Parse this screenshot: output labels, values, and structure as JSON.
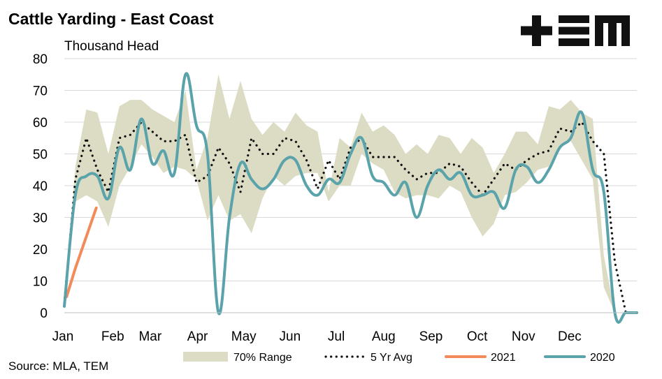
{
  "header": {
    "title": "Cattle Yarding - East Coast",
    "subtitle": "Thousand Head",
    "source": "Source: MLA, TEM",
    "logo_text": "+TEM"
  },
  "colors": {
    "range": "#dcdcc4",
    "avg": "#111111",
    "y2021": "#f28a5a",
    "y2020": "#5aa3ab",
    "grid": "#d9d9d9",
    "logo": "#111111"
  },
  "chart_data": {
    "type": "line",
    "title": "Cattle Yarding - East Coast",
    "ylabel": "Thousand Head",
    "x_unit": "week",
    "xlim": [
      1,
      53
    ],
    "ylim": [
      0,
      80
    ],
    "yticks": [
      0,
      10,
      20,
      30,
      40,
      50,
      60,
      70,
      80
    ],
    "grid": true,
    "legend_position": "bottom",
    "months": [
      {
        "label": "Jan",
        "week": 1
      },
      {
        "label": "Feb",
        "week": 5.4
      },
      {
        "label": "Mar",
        "week": 8.8
      },
      {
        "label": "Apr",
        "week": 13.1
      },
      {
        "label": "May",
        "week": 17.3
      },
      {
        "label": "Jun",
        "week": 21.5
      },
      {
        "label": "Jul",
        "week": 25.7
      },
      {
        "label": "Aug",
        "week": 30
      },
      {
        "label": "Sep",
        "week": 34.3
      },
      {
        "label": "Oct",
        "week": 38.5
      },
      {
        "label": "Nov",
        "week": 42.7
      },
      {
        "label": "Dec",
        "week": 46.9
      }
    ],
    "range_70": {
      "name": "70% Range",
      "x": [
        1,
        2,
        3,
        4,
        5,
        6,
        7,
        8,
        9,
        10,
        11,
        12,
        13,
        14,
        15,
        16,
        17,
        18,
        19,
        20,
        21,
        22,
        23,
        24,
        25,
        26,
        27,
        28,
        29,
        30,
        31,
        32,
        33,
        34,
        35,
        36,
        37,
        38,
        39,
        40,
        41,
        42,
        43,
        44,
        45,
        46,
        47,
        48,
        49,
        50,
        51,
        52,
        53
      ],
      "low": [
        0,
        35,
        37,
        35,
        27,
        40,
        46,
        53,
        49,
        44,
        46,
        45,
        42,
        29,
        37,
        29,
        31,
        25,
        36,
        43,
        40,
        43,
        44,
        44,
        35,
        40,
        40,
        50,
        47,
        45,
        38,
        36,
        37,
        37,
        36,
        40,
        38,
        30,
        24,
        28,
        37,
        38,
        41,
        45,
        46,
        52,
        54,
        48,
        42,
        8,
        0,
        0,
        0
      ],
      "high": [
        0,
        46,
        64,
        63,
        50,
        65,
        67,
        67,
        64,
        62,
        60,
        70,
        45,
        55,
        75,
        61,
        73,
        61,
        56,
        60,
        57,
        63,
        59,
        57,
        38,
        55,
        52,
        63,
        57,
        59,
        56,
        50,
        53,
        50,
        56,
        55,
        50,
        55,
        52,
        44,
        50,
        57,
        57,
        53,
        65,
        64,
        67,
        63,
        61,
        18,
        0,
        0,
        0
      ]
    },
    "series": [
      {
        "name": "5 Yr Avg",
        "x": [
          1,
          2,
          3,
          4,
          5,
          6,
          7,
          8,
          9,
          10,
          11,
          12,
          13,
          14,
          15,
          16,
          17,
          18,
          19,
          20,
          21,
          22,
          23,
          24,
          25,
          26,
          27,
          28,
          29,
          30,
          31,
          32,
          33,
          34,
          35,
          36,
          37,
          38,
          39,
          40,
          41,
          42,
          43,
          44,
          45,
          46,
          47,
          48,
          49,
          50,
          51,
          52,
          53
        ],
        "values": [
          3,
          42,
          55,
          45,
          38,
          55,
          56,
          60,
          57,
          54,
          54,
          56,
          41,
          43,
          52,
          47,
          38,
          55,
          50,
          50,
          55,
          54,
          48,
          39,
          48,
          42,
          52,
          55,
          49,
          49,
          49,
          45,
          42,
          44,
          44,
          47,
          46,
          41,
          37,
          42,
          47,
          45,
          48,
          50,
          51,
          58,
          57,
          60,
          54,
          50,
          16,
          0,
          0
        ]
      },
      {
        "name": "2021",
        "x": [
          1.2,
          2,
          3.9
        ],
        "values": [
          5,
          14,
          33
        ]
      },
      {
        "name": "2020",
        "x": [
          1,
          2,
          3,
          4,
          5,
          6,
          7,
          8,
          9,
          10,
          11,
          12,
          13,
          14,
          15,
          16,
          17,
          18,
          19,
          20,
          21,
          22,
          23,
          24,
          25,
          26,
          27,
          28,
          29,
          30,
          31,
          32,
          33,
          34,
          35,
          36,
          37,
          38,
          39,
          40,
          41,
          42,
          43,
          44,
          45,
          46,
          47,
          48,
          49,
          50,
          51,
          52,
          53
        ],
        "values": [
          2,
          37,
          43,
          43,
          36,
          52,
          45,
          61,
          47,
          51,
          44,
          75,
          59,
          50,
          0,
          30,
          47,
          42,
          39,
          42,
          48,
          48,
          40,
          37,
          42,
          41,
          50,
          55,
          43,
          41,
          37,
          41,
          30,
          40,
          45,
          42,
          44,
          37,
          37,
          38,
          33,
          45,
          46,
          41,
          45,
          52,
          55,
          63,
          45,
          38,
          0,
          0,
          0
        ]
      }
    ]
  }
}
